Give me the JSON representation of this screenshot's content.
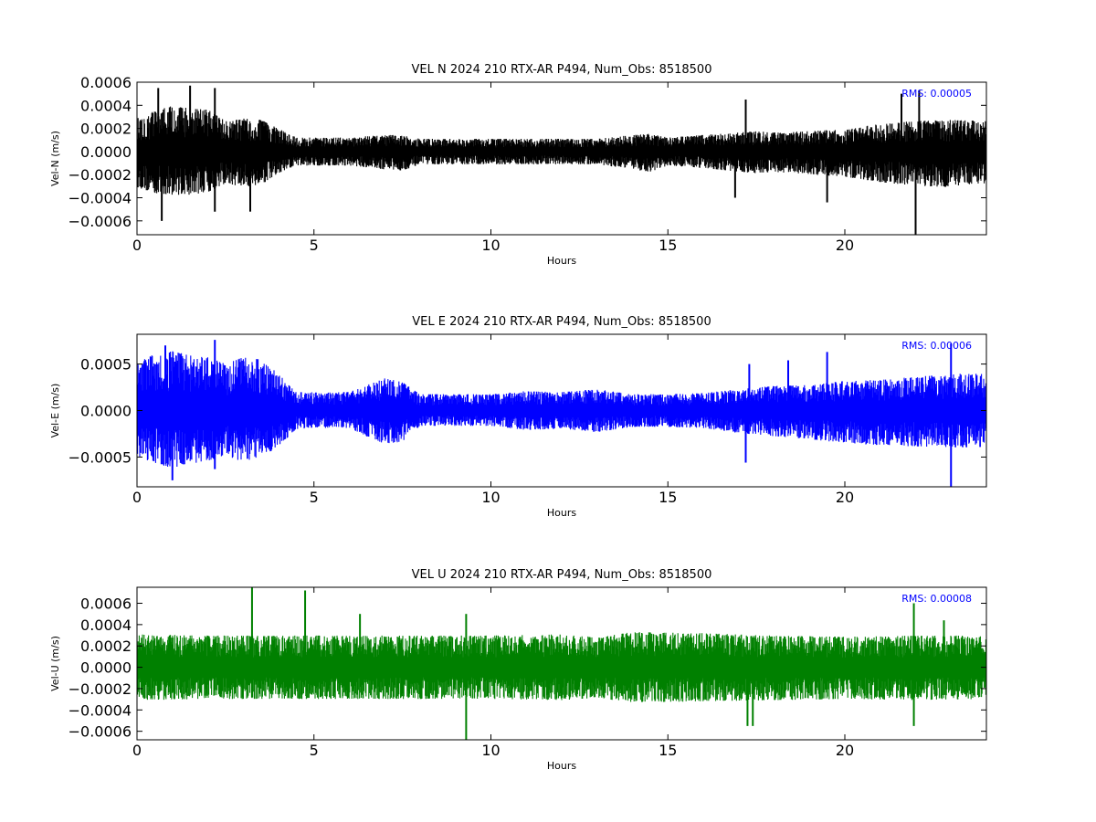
{
  "chart_data": [
    {
      "type": "line",
      "title": "VEL N 2024 210 RTX-AR  P494, Num_Obs: 8518500",
      "xlabel": "Hours",
      "ylabel": "Vel-N (m/s)",
      "xlim": [
        0,
        24
      ],
      "ylim": [
        -0.00072,
        0.0006
      ],
      "x_ticks": [
        0,
        5,
        10,
        15,
        20
      ],
      "x_tick_labels": [
        "0",
        "5",
        "10",
        "15",
        "20"
      ],
      "y_ticks": [
        -0.0006,
        -0.0004,
        -0.0002,
        0.0,
        0.0002,
        0.0004,
        0.0006
      ],
      "y_tick_labels": [
        "−0.0006",
        "−0.0004",
        "−0.0002",
        "0.0000",
        "0.0002",
        "0.0004",
        "0.0006"
      ],
      "rms_label": "RMS:  0.00005",
      "color": "#000000",
      "rms_color": "#0000ff",
      "series": [
        {
          "x": [
            0,
            0.5,
            1,
            1.5,
            2,
            2.5,
            3,
            3.5,
            4,
            4.5,
            5,
            6,
            7,
            7.5,
            8,
            9,
            10,
            11,
            12,
            13,
            14,
            14.5,
            15,
            16,
            17,
            17.5,
            18,
            19,
            19.5,
            20,
            21,
            22,
            23,
            24
          ],
          "upper": [
            0.00026,
            0.00032,
            0.00036,
            0.00034,
            0.00033,
            0.00024,
            0.00026,
            0.00025,
            0.00018,
            0.00011,
            0.00011,
            0.00011,
            0.00013,
            0.00013,
            0.0001,
            0.0001,
            0.0001,
            0.0001,
            0.0001,
            0.0001,
            0.00013,
            0.00014,
            0.00011,
            0.00013,
            0.00015,
            0.00016,
            0.00015,
            0.00016,
            0.00017,
            0.00017,
            0.00022,
            0.00024,
            0.00025,
            0.00024
          ],
          "lower": [
            -0.00028,
            -0.00033,
            -0.00034,
            -0.00034,
            -0.00032,
            -0.00025,
            -0.00028,
            -0.00026,
            -0.00018,
            -0.00011,
            -0.00011,
            -0.00011,
            -0.00014,
            -0.00015,
            -0.0001,
            -0.0001,
            -0.0001,
            -0.0001,
            -0.0001,
            -0.0001,
            -0.00014,
            -0.00016,
            -0.00011,
            -0.00013,
            -0.00016,
            -0.00017,
            -0.00016,
            -0.00018,
            -0.00019,
            -0.0002,
            -0.00024,
            -0.00027,
            -0.00028,
            -0.00025
          ],
          "spikes": [
            [
              0.6,
              0.00055
            ],
            [
              0.7,
              -0.0006
            ],
            [
              1.5,
              0.00057
            ],
            [
              2.2,
              0.00055
            ],
            [
              2.2,
              -0.00052
            ],
            [
              3.2,
              -0.00052
            ],
            [
              16.9,
              -0.0004
            ],
            [
              17.2,
              0.00045
            ],
            [
              19.5,
              -0.00044
            ],
            [
              21.6,
              0.0005
            ],
            [
              22.0,
              -0.00072
            ],
            [
              22.1,
              0.00053
            ]
          ]
        }
      ]
    },
    {
      "type": "line",
      "title": "VEL E 2024 210 RTX-AR  P494, Num_Obs: 8518500",
      "xlabel": "Hours",
      "ylabel": "Vel-E (m/s)",
      "xlim": [
        0,
        24
      ],
      "ylim": [
        -0.00082,
        0.00082
      ],
      "x_ticks": [
        0,
        5,
        10,
        15,
        20
      ],
      "x_tick_labels": [
        "0",
        "5",
        "10",
        "15",
        "20"
      ],
      "y_ticks": [
        -0.0005,
        0.0,
        0.0005
      ],
      "y_tick_labels": [
        "−0.0005",
        "0.0000",
        "0.0005"
      ],
      "rms_label": "RMS:  0.00006",
      "color": "#0000ff",
      "rms_color": "#0000ff",
      "series": [
        {
          "x": [
            0,
            0.5,
            1,
            1.5,
            2,
            2.5,
            3,
            3.5,
            4,
            4.5,
            5,
            6,
            7,
            7.5,
            8,
            9,
            10,
            11,
            12,
            13,
            14,
            15,
            16,
            17,
            18,
            19,
            20,
            21,
            22,
            23,
            24
          ],
          "upper": [
            0.00048,
            0.00055,
            0.00058,
            0.00054,
            0.00052,
            0.00046,
            0.00052,
            0.0005,
            0.00036,
            0.00018,
            0.00018,
            0.00018,
            0.00032,
            0.00028,
            0.00016,
            0.00016,
            0.00016,
            0.00019,
            0.00018,
            0.00021,
            0.00016,
            0.00016,
            0.00017,
            0.00021,
            0.00024,
            0.00025,
            0.00029,
            0.0003,
            0.00033,
            0.00036,
            0.00036
          ],
          "lower": [
            -0.00045,
            -0.00052,
            -0.00056,
            -0.00052,
            -0.00049,
            -0.00044,
            -0.0005,
            -0.00046,
            -0.00035,
            -0.00018,
            -0.00017,
            -0.00017,
            -0.00034,
            -0.0003,
            -0.00015,
            -0.00015,
            -0.00015,
            -0.00019,
            -0.00018,
            -0.00021,
            -0.00016,
            -0.00016,
            -0.00017,
            -0.00022,
            -0.00025,
            -0.00028,
            -0.00032,
            -0.00034,
            -0.00035,
            -0.00036,
            -0.00036
          ],
          "spikes": [
            [
              0.8,
              0.0007
            ],
            [
              1.0,
              -0.00075
            ],
            [
              2.2,
              0.00076
            ],
            [
              2.2,
              -0.00063
            ],
            [
              17.2,
              -0.00056
            ],
            [
              17.3,
              0.0005
            ],
            [
              18.4,
              0.00054
            ],
            [
              19.5,
              0.00063
            ],
            [
              23.0,
              0.00072
            ],
            [
              23.0,
              -0.00083
            ]
          ]
        }
      ]
    },
    {
      "type": "line",
      "title": "VEL U 2024 210 RTX-AR  P494, Num_Obs: 8518500",
      "xlabel": "Hours",
      "ylabel": "Vel-U (m/s)",
      "xlim": [
        0,
        24
      ],
      "ylim": [
        -0.00068,
        0.00075
      ],
      "x_ticks": [
        0,
        5,
        10,
        15,
        20
      ],
      "x_tick_labels": [
        "0",
        "5",
        "10",
        "15",
        "20"
      ],
      "y_ticks": [
        -0.0006,
        -0.0004,
        -0.0002,
        0.0,
        0.0002,
        0.0004,
        0.0006
      ],
      "y_tick_labels": [
        "−0.0006",
        "−0.0004",
        "−0.0002",
        "0.0000",
        "0.0002",
        "0.0004",
        "0.0006"
      ],
      "rms_label": "RMS:  0.00008",
      "color": "#008000",
      "rms_color": "#0000ff",
      "series": [
        {
          "x": [
            0,
            2,
            4,
            6,
            8,
            10,
            12,
            13,
            14,
            16,
            18,
            20,
            22,
            24
          ],
          "upper": [
            0.00028,
            0.00027,
            0.00027,
            0.00027,
            0.00027,
            0.00027,
            0.00028,
            0.00026,
            0.0003,
            0.00029,
            0.00027,
            0.00026,
            0.00027,
            0.00027
          ],
          "lower": [
            -0.00028,
            -0.00027,
            -0.00027,
            -0.00027,
            -0.00027,
            -0.00027,
            -0.00028,
            -0.00026,
            -0.0003,
            -0.00029,
            -0.00028,
            -0.00027,
            -0.00028,
            -0.00027
          ],
          "spikes": [
            [
              3.25,
              0.00075
            ],
            [
              4.75,
              0.00072
            ],
            [
              6.3,
              0.0005
            ],
            [
              9.3,
              0.0005
            ],
            [
              9.3,
              -0.00068
            ],
            [
              17.25,
              -0.00055
            ],
            [
              17.4,
              -0.00055
            ],
            [
              21.95,
              0.0006
            ],
            [
              21.95,
              -0.00055
            ],
            [
              22.8,
              0.00044
            ]
          ]
        }
      ]
    }
  ]
}
